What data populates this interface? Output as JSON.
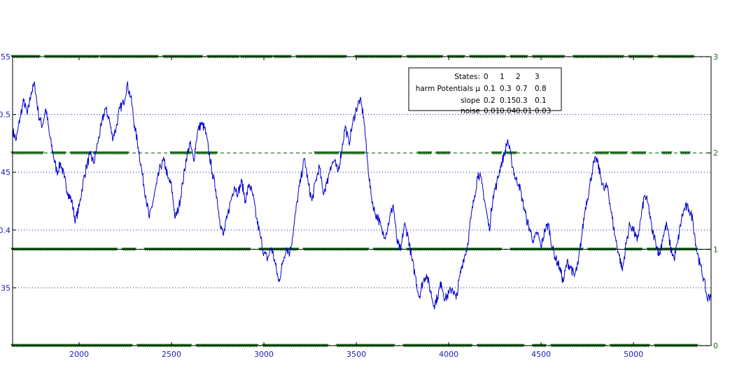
{
  "chart_data": {
    "type": "line",
    "title": "",
    "xlabel": "",
    "ylabel": "",
    "xlim": [
      1640,
      5420
    ],
    "ylim_left": [
      0.3,
      0.55
    ],
    "ylim_right": [
      0,
      3
    ],
    "x_ticks": [
      2000,
      2500,
      3000,
      3500,
      4000,
      4500,
      5000
    ],
    "y_left_ticks": [
      0.35,
      0.4,
      0.45,
      0.5,
      0.55
    ],
    "y_left_tick_labels": [
      ".35",
      "0.4",
      ".45",
      "0.5",
      ".55"
    ],
    "y_right_ticks": [
      0,
      1,
      2,
      3
    ],
    "grid": "horizontal dotted at left y ticks",
    "colors": {
      "signal": "#0000cc",
      "states": "#1a6a1a",
      "axis": "#000000",
      "grid": "#1a1ab8"
    },
    "series": [
      {
        "axis": "left",
        "style": "line",
        "points": [
          [
            1640,
            0.486
          ],
          [
            1660,
            0.478
          ],
          [
            1680,
            0.497
          ],
          [
            1700,
            0.512
          ],
          [
            1720,
            0.5
          ],
          [
            1740,
            0.519
          ],
          [
            1760,
            0.526
          ],
          [
            1780,
            0.5
          ],
          [
            1800,
            0.49
          ],
          [
            1820,
            0.505
          ],
          [
            1840,
            0.482
          ],
          [
            1860,
            0.465
          ],
          [
            1880,
            0.45
          ],
          [
            1900,
            0.458
          ],
          [
            1920,
            0.445
          ],
          [
            1940,
            0.432
          ],
          [
            1960,
            0.425
          ],
          [
            1980,
            0.408
          ],
          [
            2000,
            0.42
          ],
          [
            2020,
            0.44
          ],
          [
            2040,
            0.455
          ],
          [
            2060,
            0.465
          ],
          [
            2080,
            0.458
          ],
          [
            2100,
            0.475
          ],
          [
            2120,
            0.49
          ],
          [
            2140,
            0.505
          ],
          [
            2160,
            0.498
          ],
          [
            2180,
            0.48
          ],
          [
            2200,
            0.488
          ],
          [
            2220,
            0.505
          ],
          [
            2240,
            0.51
          ],
          [
            2260,
            0.526
          ],
          [
            2280,
            0.515
          ],
          [
            2300,
            0.49
          ],
          [
            2320,
            0.472
          ],
          [
            2340,
            0.45
          ],
          [
            2360,
            0.43
          ],
          [
            2380,
            0.41
          ],
          [
            2400,
            0.425
          ],
          [
            2420,
            0.44
          ],
          [
            2440,
            0.455
          ],
          [
            2460,
            0.46
          ],
          [
            2480,
            0.445
          ],
          [
            2500,
            0.438
          ],
          [
            2520,
            0.41
          ],
          [
            2540,
            0.42
          ],
          [
            2560,
            0.44
          ],
          [
            2580,
            0.462
          ],
          [
            2600,
            0.475
          ],
          [
            2620,
            0.46
          ],
          [
            2640,
            0.485
          ],
          [
            2660,
            0.492
          ],
          [
            2680,
            0.488
          ],
          [
            2700,
            0.47
          ],
          [
            2720,
            0.45
          ],
          [
            2740,
            0.435
          ],
          [
            2760,
            0.41
          ],
          [
            2780,
            0.395
          ],
          [
            2800,
            0.41
          ],
          [
            2820,
            0.425
          ],
          [
            2840,
            0.438
          ],
          [
            2860,
            0.432
          ],
          [
            2880,
            0.442
          ],
          [
            2900,
            0.425
          ],
          [
            2920,
            0.44
          ],
          [
            2940,
            0.43
          ],
          [
            2960,
            0.41
          ],
          [
            2980,
            0.395
          ],
          [
            3000,
            0.38
          ],
          [
            3020,
            0.375
          ],
          [
            3040,
            0.385
          ],
          [
            3060,
            0.372
          ],
          [
            3080,
            0.355
          ],
          [
            3100,
            0.37
          ],
          [
            3120,
            0.385
          ],
          [
            3140,
            0.38
          ],
          [
            3160,
            0.4
          ],
          [
            3180,
            0.425
          ],
          [
            3200,
            0.445
          ],
          [
            3220,
            0.462
          ],
          [
            3240,
            0.44
          ],
          [
            3260,
            0.425
          ],
          [
            3280,
            0.442
          ],
          [
            3300,
            0.455
          ],
          [
            3320,
            0.432
          ],
          [
            3340,
            0.44
          ],
          [
            3360,
            0.455
          ],
          [
            3380,
            0.46
          ],
          [
            3400,
            0.45
          ],
          [
            3420,
            0.468
          ],
          [
            3440,
            0.49
          ],
          [
            3460,
            0.475
          ],
          [
            3480,
            0.492
          ],
          [
            3500,
            0.505
          ],
          [
            3520,
            0.513
          ],
          [
            3540,
            0.498
          ],
          [
            3560,
            0.46
          ],
          [
            3580,
            0.43
          ],
          [
            3600,
            0.415
          ],
          [
            3620,
            0.41
          ],
          [
            3640,
            0.398
          ],
          [
            3660,
            0.396
          ],
          [
            3680,
            0.41
          ],
          [
            3700,
            0.422
          ],
          [
            3720,
            0.39
          ],
          [
            3740,
            0.382
          ],
          [
            3760,
            0.405
          ],
          [
            3780,
            0.395
          ],
          [
            3800,
            0.375
          ],
          [
            3820,
            0.36
          ],
          [
            3840,
            0.342
          ],
          [
            3860,
            0.355
          ],
          [
            3880,
            0.362
          ],
          [
            3900,
            0.348
          ],
          [
            3920,
            0.335
          ],
          [
            3940,
            0.342
          ],
          [
            3960,
            0.355
          ],
          [
            3980,
            0.34
          ],
          [
            4000,
            0.345
          ],
          [
            4020,
            0.35
          ],
          [
            4040,
            0.34
          ],
          [
            4060,
            0.36
          ],
          [
            4080,
            0.375
          ],
          [
            4100,
            0.385
          ],
          [
            4120,
            0.41
          ],
          [
            4140,
            0.43
          ],
          [
            4160,
            0.45
          ],
          [
            4180,
            0.44
          ],
          [
            4200,
            0.42
          ],
          [
            4220,
            0.4
          ],
          [
            4240,
            0.43
          ],
          [
            4260,
            0.44
          ],
          [
            4280,
            0.455
          ],
          [
            4300,
            0.465
          ],
          [
            4320,
            0.478
          ],
          [
            4340,
            0.46
          ],
          [
            4360,
            0.445
          ],
          [
            4380,
            0.44
          ],
          [
            4400,
            0.425
          ],
          [
            4420,
            0.41
          ],
          [
            4440,
            0.4
          ],
          [
            4460,
            0.39
          ],
          [
            4480,
            0.398
          ],
          [
            4500,
            0.385
          ],
          [
            4520,
            0.4
          ],
          [
            4540,
            0.405
          ],
          [
            4560,
            0.385
          ],
          [
            4580,
            0.375
          ],
          [
            4600,
            0.368
          ],
          [
            4620,
            0.355
          ],
          [
            4640,
            0.372
          ],
          [
            4660,
            0.368
          ],
          [
            4680,
            0.36
          ],
          [
            4700,
            0.37
          ],
          [
            4720,
            0.395
          ],
          [
            4740,
            0.42
          ],
          [
            4760,
            0.435
          ],
          [
            4780,
            0.455
          ],
          [
            4800,
            0.462
          ],
          [
            4820,
            0.448
          ],
          [
            4840,
            0.435
          ],
          [
            4860,
            0.438
          ],
          [
            4880,
            0.415
          ],
          [
            4900,
            0.395
          ],
          [
            4920,
            0.38
          ],
          [
            4940,
            0.365
          ],
          [
            4960,
            0.388
          ],
          [
            4980,
            0.405
          ],
          [
            5000,
            0.4
          ],
          [
            5020,
            0.39
          ],
          [
            5040,
            0.41
          ],
          [
            5060,
            0.43
          ],
          [
            5080,
            0.422
          ],
          [
            5100,
            0.4
          ],
          [
            5120,
            0.39
          ],
          [
            5140,
            0.378
          ],
          [
            5160,
            0.395
          ],
          [
            5180,
            0.405
          ],
          [
            5200,
            0.385
          ],
          [
            5220,
            0.375
          ],
          [
            5240,
            0.39
          ],
          [
            5260,
            0.41
          ],
          [
            5280,
            0.42
          ],
          [
            5300,
            0.418
          ],
          [
            5320,
            0.41
          ],
          [
            5340,
            0.385
          ],
          [
            5360,
            0.37
          ],
          [
            5380,
            0.358
          ],
          [
            5400,
            0.34
          ],
          [
            5420,
            0.345
          ]
        ]
      },
      {
        "axis": "right",
        "style": "markers",
        "marker": "triangle-down",
        "level_spans": {
          "0": [
            [
              1640,
              2280
            ],
            [
              2320,
              2600
            ],
            [
              2640,
              2960
            ],
            [
              3000,
              3340
            ],
            [
              3400,
              3700
            ],
            [
              3760,
              4120
            ],
            [
              4160,
              4400
            ],
            [
              4460,
              4520
            ],
            [
              4560,
              4840
            ],
            [
              4880,
              5080
            ],
            [
              5120,
              5340
            ]
          ],
          "1": [
            [
              1640,
              2200
            ],
            [
              2240,
              2300
            ],
            [
              2360,
              2920
            ],
            [
              2980,
              3180
            ],
            [
              3220,
              3560
            ],
            [
              3600,
              3740
            ],
            [
              3780,
              4280
            ],
            [
              4340,
              4720
            ],
            [
              4760,
              4900
            ],
            [
              4960,
              5040
            ],
            [
              5080,
              5340
            ]
          ],
          "2": [
            [
              1640,
              1800
            ],
            [
              1860,
              1920
            ],
            [
              1960,
              2060
            ],
            [
              2080,
              2260
            ],
            [
              2500,
              2600
            ],
            [
              2640,
              2740
            ],
            [
              3280,
              3400
            ],
            [
              3420,
              3540
            ],
            [
              3840,
              3900
            ],
            [
              3940,
              4000
            ],
            [
              4240,
              4280
            ],
            [
              4320,
              4360
            ],
            [
              4800,
              4860
            ],
            [
              4880,
              4960
            ],
            [
              5000,
              5060
            ],
            [
              5160,
              5200
            ],
            [
              5260,
              5300
            ]
          ],
          "3": [
            [
              1640,
              1780
            ],
            [
              1820,
              2100
            ],
            [
              2120,
              2420
            ],
            [
              2460,
              2660
            ],
            [
              2700,
              2860
            ],
            [
              2880,
              3040
            ],
            [
              3060,
              3140
            ],
            [
              3180,
              3440
            ],
            [
              3500,
              3740
            ],
            [
              3780,
              3960
            ],
            [
              4000,
              4080
            ],
            [
              4120,
              4300
            ],
            [
              4340,
              4420
            ],
            [
              4460,
              4620
            ],
            [
              4680,
              4940
            ],
            [
              4980,
              5100
            ],
            [
              5140,
              5320
            ]
          ]
        }
      }
    ],
    "reference_line": {
      "axis": "left",
      "y": 0.3833
    }
  },
  "legend": {
    "rows": [
      {
        "label": "States:",
        "values": [
          "0",
          "1",
          "2",
          "3"
        ]
      },
      {
        "label": "harm Potentials μ",
        "values": [
          "0.1",
          "0.3",
          "0.7",
          "0.8"
        ]
      },
      {
        "label": "slope",
        "values": [
          "0.2",
          "0.15",
          "0.3",
          "0.1"
        ]
      },
      {
        "label": "noise",
        "values": [
          "0.01",
          "0.04",
          "0.01",
          "0.03"
        ]
      }
    ]
  }
}
